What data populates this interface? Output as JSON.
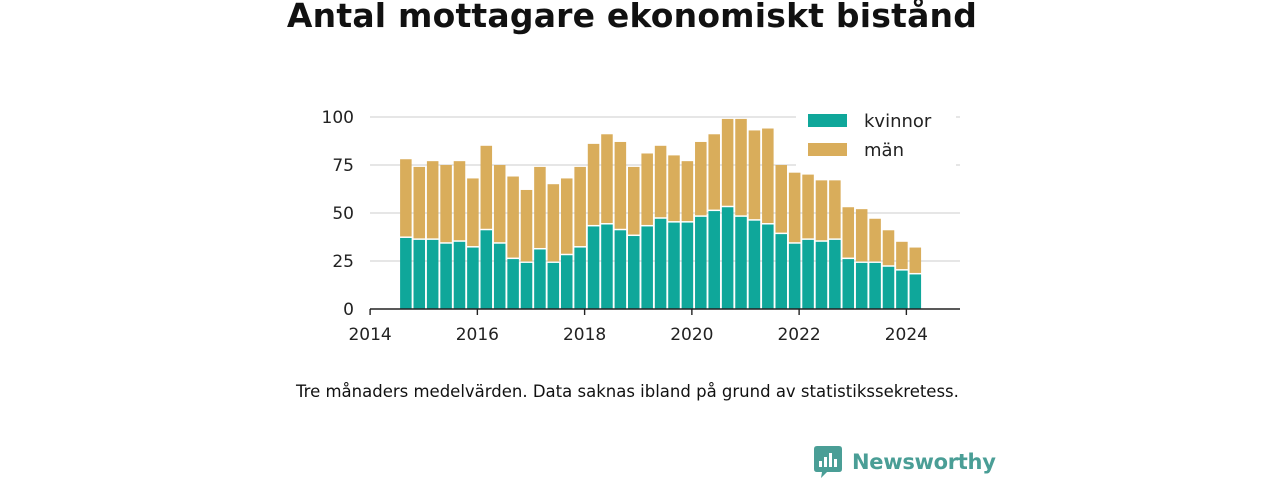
{
  "colors": {
    "accent": "#4a9e96",
    "kvinnor": "#0fa79a",
    "man": "#d9ad5b",
    "grid": "#dddddd",
    "axis": "#222222"
  },
  "footnote": "Tre månaders medelvärden. Data saknas ibland på grund av statistikssekretess.",
  "brand": {
    "name": "Newsworthy",
    "icon": "newsworthy-logo-icon"
  },
  "chart_data": {
    "type": "bar",
    "stacked": true,
    "title": "Antal mottagare ekonomiskt bistånd",
    "xlabel": "",
    "ylabel": "",
    "ylim": [
      0,
      100
    ],
    "xlim": [
      "2014-01",
      "2024-12"
    ],
    "yticks": [
      0,
      25,
      50,
      75,
      100
    ],
    "xticks": [
      "2014",
      "2016",
      "2018",
      "2020",
      "2022",
      "2024"
    ],
    "grid": true,
    "legend": "top-right",
    "categories": [
      "2014-09",
      "2014-12",
      "2015-03",
      "2015-06",
      "2015-09",
      "2015-12",
      "2016-03",
      "2016-06",
      "2016-09",
      "2016-12",
      "2017-03",
      "2017-06",
      "2017-09",
      "2017-12",
      "2018-03",
      "2018-06",
      "2018-09",
      "2018-12",
      "2019-03",
      "2019-06",
      "2019-09",
      "2019-12",
      "2020-03",
      "2020-06",
      "2020-09",
      "2020-12",
      "2021-03",
      "2021-06",
      "2021-09",
      "2021-12",
      "2022-03",
      "2022-06",
      "2022-09",
      "2022-12",
      "2023-03",
      "2023-06",
      "2023-09",
      "2023-12",
      "2024-03"
    ],
    "series": [
      {
        "name": "kvinnor",
        "values": [
          37,
          36,
          36,
          34,
          35,
          32,
          41,
          34,
          26,
          24,
          31,
          24,
          28,
          32,
          43,
          44,
          41,
          38,
          43,
          47,
          45,
          45,
          48,
          51,
          53,
          48,
          46,
          44,
          39,
          34,
          36,
          35,
          36,
          26,
          24,
          24,
          22,
          20,
          18
        ]
      },
      {
        "name": "män",
        "values": [
          41,
          38,
          41,
          41,
          42,
          36,
          44,
          41,
          43,
          38,
          43,
          41,
          40,
          42,
          43,
          47,
          46,
          36,
          38,
          38,
          35,
          32,
          39,
          40,
          46,
          51,
          47,
          50,
          36,
          37,
          34,
          32,
          31,
          27,
          28,
          23,
          19,
          15,
          14
        ]
      }
    ]
  }
}
